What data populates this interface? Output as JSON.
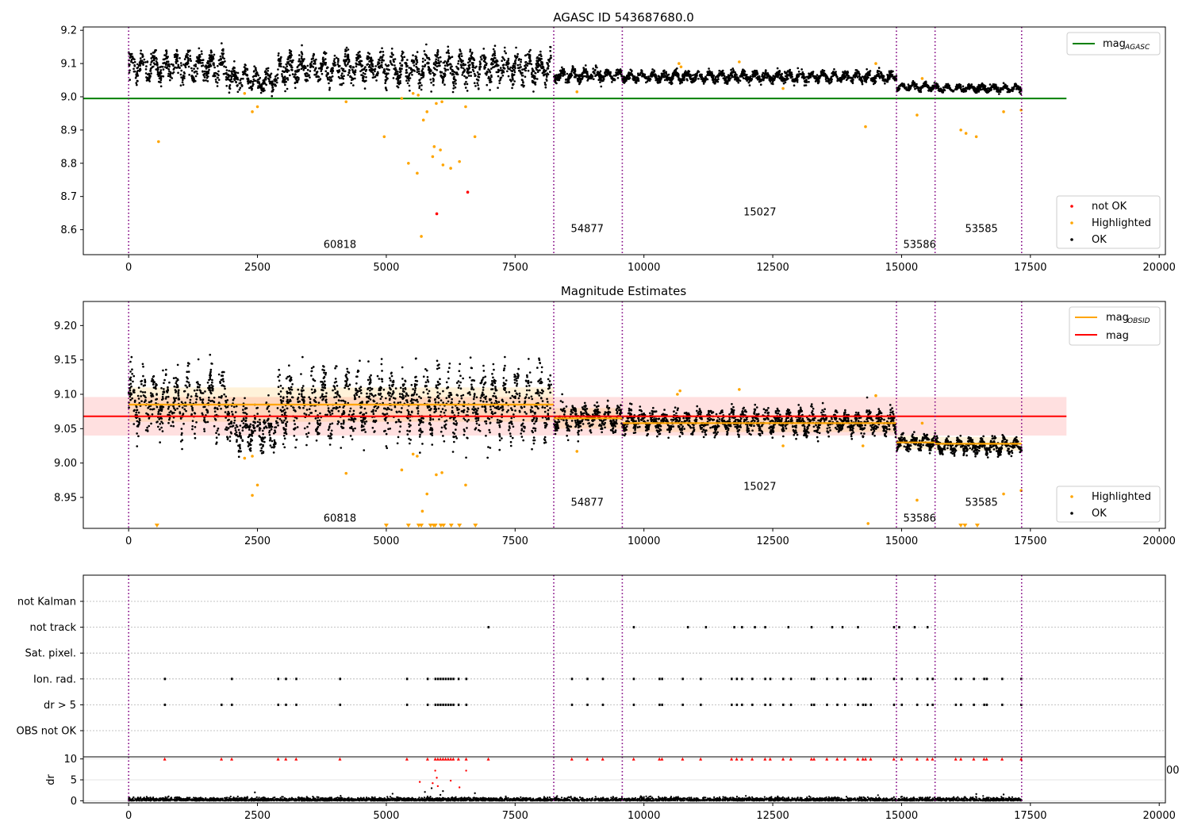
{
  "chart_data": [
    {
      "type": "scatter",
      "title": "AGASC ID 543687680.0",
      "xlim": [
        -880,
        20120
      ],
      "ylim": [
        8.525,
        9.21
      ],
      "xticks": [
        0,
        2500,
        5000,
        7500,
        10000,
        12500,
        15000,
        17500,
        20000
      ],
      "xtick_labels": [
        "0",
        "2500",
        "5000",
        "7500",
        "10000",
        "12500",
        "15000",
        "17500",
        "20000"
      ],
      "yticks": [
        8.6,
        8.7,
        8.8,
        8.9,
        9.0,
        9.1,
        9.2
      ],
      "ytick_labels": [
        "8.6",
        "8.7",
        "8.8",
        "8.9",
        "9.0",
        "9.1",
        "9.2"
      ],
      "obs_boundaries": [
        0,
        8250,
        9580,
        14900,
        15650,
        17330
      ],
      "obs_labels": [
        {
          "x": 4100,
          "y": 8.545,
          "text": "60818"
        },
        {
          "x": 8900,
          "y": 8.593,
          "text": "54877"
        },
        {
          "x": 12250,
          "y": 8.643,
          "text": "15027"
        },
        {
          "x": 15350,
          "y": 8.545,
          "text": "53586"
        },
        {
          "x": 16550,
          "y": 8.593,
          "text": "53585"
        }
      ],
      "reference_line": {
        "name": "mag_AGASC",
        "y": 8.995,
        "x": [
          -880,
          18200
        ],
        "color": "#008000"
      },
      "series": [
        {
          "name": "not OK",
          "color": "#ff0000",
          "points": [
            [
              6580,
              8.713
            ],
            [
              5980,
              8.648
            ]
          ]
        },
        {
          "name": "Highlighted",
          "color": "#ffa500",
          "points": [
            [
              580,
              8.865
            ],
            [
              2250,
              9.01
            ],
            [
              2400,
              8.955
            ],
            [
              2500,
              8.97
            ],
            [
              4220,
              8.985
            ],
            [
              4960,
              8.88
            ],
            [
              5300,
              8.995
            ],
            [
              5430,
              8.8
            ],
            [
              5520,
              9.01
            ],
            [
              5600,
              8.77
            ],
            [
              5620,
              9.005
            ],
            [
              5680,
              8.58
            ],
            [
              5720,
              8.93
            ],
            [
              5790,
              8.955
            ],
            [
              5900,
              8.82
            ],
            [
              5930,
              8.85
            ],
            [
              5970,
              8.98
            ],
            [
              6050,
              8.84
            ],
            [
              6080,
              8.985
            ],
            [
              6100,
              8.795
            ],
            [
              6250,
              8.785
            ],
            [
              6420,
              8.805
            ],
            [
              6540,
              8.97
            ],
            [
              6720,
              8.88
            ],
            [
              8700,
              9.015
            ],
            [
              10680,
              9.1
            ],
            [
              10720,
              9.09
            ],
            [
              11850,
              9.105
            ],
            [
              12700,
              9.025
            ],
            [
              14300,
              8.91
            ],
            [
              14500,
              9.1
            ],
            [
              15300,
              8.945
            ],
            [
              15400,
              9.055
            ],
            [
              16150,
              8.9
            ],
            [
              16250,
              8.89
            ],
            [
              16450,
              8.88
            ],
            [
              16980,
              8.955
            ],
            [
              17320,
              8.96
            ]
          ]
        },
        {
          "name": "OK",
          "color": "#000000",
          "segments": [
            {
              "x": [
                0,
                1950
              ],
              "base": 9.09,
              "amp": 0.045
            },
            {
              "x": 1950,
              "x_end": 2900,
              "base": 9.05,
              "amp": 0.035
            },
            {
              "x": [
                2900,
                8200
              ],
              "base": 9.085,
              "amp": 0.05
            },
            {
              "x": [
                8250,
                9580
              ],
              "base": 9.065,
              "amp": 0.02
            },
            {
              "x": [
                9580,
                14900
              ],
              "base": 9.06,
              "amp": 0.018
            },
            {
              "x": [
                14900,
                15650
              ],
              "base": 9.03,
              "amp": 0.012
            },
            {
              "x": [
                15650,
                17330
              ],
              "base": 9.025,
              "amp": 0.012
            }
          ]
        }
      ],
      "legends": [
        {
          "entries": [
            {
              "label": "mag",
              "sub": "AGASC",
              "color": "#008000",
              "kind": "line"
            }
          ],
          "position": "upper right"
        },
        {
          "entries": [
            {
              "label": "not OK",
              "color": "#ff0000",
              "kind": "marker"
            },
            {
              "label": "Highlighted",
              "color": "#ffa500",
              "kind": "marker"
            },
            {
              "label": "OK",
              "color": "#000000",
              "kind": "marker"
            }
          ],
          "position": "lower right"
        }
      ]
    },
    {
      "type": "scatter",
      "title": "Magnitude Estimates",
      "xlim": [
        -880,
        20120
      ],
      "ylim": [
        8.905,
        9.235
      ],
      "xticks": [
        0,
        2500,
        5000,
        7500,
        10000,
        12500,
        15000,
        17500,
        20000
      ],
      "xtick_labels": [
        "0",
        "2500",
        "5000",
        "7500",
        "10000",
        "12500",
        "15000",
        "17500",
        "20000"
      ],
      "yticks": [
        8.95,
        9.0,
        9.05,
        9.1,
        9.15,
        9.2
      ],
      "ytick_labels": [
        "8.95",
        "9.00",
        "9.05",
        "9.10",
        "9.15",
        "9.20"
      ],
      "obs_boundaries": [
        0,
        8250,
        9580,
        14900,
        15650,
        17330
      ],
      "obs_labels": [
        {
          "x": 4100,
          "y": 8.915,
          "text": "60818"
        },
        {
          "x": 8900,
          "y": 8.938,
          "text": "54877"
        },
        {
          "x": 12250,
          "y": 8.961,
          "text": "15027"
        },
        {
          "x": 15350,
          "y": 8.915,
          "text": "53586"
        },
        {
          "x": 16550,
          "y": 8.938,
          "text": "53585"
        }
      ],
      "mag": {
        "y": 9.068,
        "band": [
          9.04,
          9.096
        ],
        "x": [
          -880,
          18200
        ],
        "color": "#ff0000"
      },
      "mag_obsid": [
        {
          "x": [
            0,
            8250
          ],
          "y": 9.085,
          "band": [
            9.06,
            9.11
          ]
        },
        {
          "x": [
            8250,
            9580
          ],
          "y": 9.065,
          "band": [
            9.05,
            9.08
          ]
        },
        {
          "x": [
            9580,
            14900
          ],
          "y": 9.058,
          "band": [
            9.045,
            9.07
          ]
        },
        {
          "x": [
            14900,
            15650
          ],
          "y": 9.03,
          "band": [
            9.02,
            9.04
          ]
        },
        {
          "x": [
            15650,
            17330
          ],
          "y": 9.028,
          "band": [
            9.018,
            9.038
          ]
        }
      ],
      "highlighted_clipped_x": [
        550,
        5000,
        5430,
        5630,
        5680,
        5860,
        5920,
        5950,
        6060,
        6110,
        6260,
        6420,
        6730,
        16150,
        16230,
        16470
      ],
      "highlighted_points": [
        [
          2250,
          9.007
        ],
        [
          2400,
          9.01
        ],
        [
          2500,
          8.968
        ],
        [
          2400,
          8.953
        ],
        [
          4220,
          8.985
        ],
        [
          5300,
          8.99
        ],
        [
          5520,
          9.013
        ],
        [
          5600,
          9.01
        ],
        [
          5700,
          8.93
        ],
        [
          5790,
          8.955
        ],
        [
          5970,
          8.983
        ],
        [
          6080,
          8.986
        ],
        [
          6540,
          8.968
        ],
        [
          8700,
          9.017
        ],
        [
          10700,
          9.105
        ],
        [
          10650,
          9.1
        ],
        [
          11850,
          9.107
        ],
        [
          12700,
          9.025
        ],
        [
          14250,
          9.025
        ],
        [
          14350,
          8.912
        ],
        [
          14500,
          9.098
        ],
        [
          15300,
          8.946
        ],
        [
          15400,
          9.058
        ],
        [
          16980,
          8.955
        ],
        [
          17320,
          8.96
        ]
      ],
      "legends": [
        {
          "entries": [
            {
              "label": "mag",
              "sub": "OBSID",
              "color": "#ffa500",
              "kind": "line"
            },
            {
              "label": "mag",
              "color": "#ff0000",
              "kind": "line"
            }
          ],
          "position": "upper right"
        },
        {
          "entries": [
            {
              "label": "Highlighted",
              "color": "#ffa500",
              "kind": "marker"
            },
            {
              "label": "OK",
              "color": "#000000",
              "kind": "marker"
            }
          ],
          "position": "lower right"
        }
      ]
    },
    {
      "type": "scatter",
      "title": "",
      "categories": [
        "not Kalman",
        "not track",
        "Sat. pixel.",
        "Ion. rad.",
        "dr > 5",
        "OBS not OK"
      ],
      "xlim": [
        -880,
        20120
      ],
      "obs_boundaries": [
        0,
        8250,
        9580,
        14900,
        15650,
        17330
      ],
      "flags": {
        "not track": [
          6980,
          9800,
          10850,
          11200,
          11750,
          11900,
          12150,
          12350,
          12800,
          13250,
          13650,
          13850,
          14150,
          14850,
          14950,
          15250,
          15500
        ],
        "Ion. rad.": [
          700,
          2000,
          2900,
          3050,
          3250,
          4100,
          5400,
          5800,
          5950,
          6000,
          6050,
          6100,
          6150,
          6200,
          6250,
          6300,
          6400,
          6550,
          8600,
          8900,
          9200,
          9800,
          10300,
          10350,
          10750,
          11100,
          11700,
          11800,
          11900,
          12100,
          12350,
          12450,
          12700,
          12850,
          13250,
          13300,
          13550,
          13750,
          13900,
          14150,
          14250,
          14300,
          14400,
          14850,
          15000,
          15300,
          15500,
          15600,
          16050,
          16150,
          16400,
          16600,
          16650,
          16950,
          17320
        ],
        "dr > 5": [
          700,
          1800,
          2000,
          2900,
          3050,
          3250,
          4100,
          5400,
          5800,
          5950,
          6000,
          6050,
          6100,
          6150,
          6200,
          6250,
          6300,
          6400,
          6550,
          8600,
          8900,
          9200,
          9800,
          10300,
          10350,
          10750,
          11100,
          11700,
          11800,
          11900,
          12100,
          12350,
          12450,
          12700,
          12850,
          13250,
          13300,
          13550,
          13750,
          13900,
          14150,
          14250,
          14300,
          14400,
          14850,
          15000,
          15300,
          15500,
          15600,
          16050,
          16150,
          16400,
          16600,
          16650,
          16950,
          17320
        ]
      }
    },
    {
      "type": "scatter",
      "title": "",
      "ylabel": "dr",
      "xlim": [
        -880,
        20120
      ],
      "ylim": [
        -0.5,
        10.5
      ],
      "xticks": [
        0,
        2500,
        5000,
        7500,
        10000,
        12500,
        15000,
        17500,
        20000
      ],
      "xtick_labels": [
        "0",
        "2500",
        "5000",
        "7500",
        "10000",
        "12500",
        "15000",
        "17500",
        "20000"
      ],
      "yticks": [
        0,
        5,
        10
      ],
      "ytick_labels": [
        "0",
        "5",
        "10"
      ],
      "obs_boundaries": [
        0,
        8250,
        9580,
        14900,
        15650,
        17330
      ],
      "clipped_red_x": [
        700,
        1800,
        2000,
        2900,
        3050,
        3250,
        4100,
        5400,
        5800,
        5950,
        6000,
        6050,
        6100,
        6150,
        6200,
        6250,
        6300,
        6400,
        6550,
        6980,
        8600,
        8900,
        9200,
        9800,
        10300,
        10350,
        10750,
        11100,
        11700,
        11800,
        11900,
        12100,
        12350,
        12450,
        12700,
        12850,
        13250,
        13300,
        13550,
        13750,
        13900,
        14150,
        14250,
        14300,
        14400,
        14850,
        15000,
        15300,
        15500,
        15600,
        16050,
        16150,
        16400,
        16600,
        16650,
        16950,
        17320
      ],
      "outlier_points": [
        [
          5950,
          7.2
        ],
        [
          5980,
          5.5
        ],
        [
          5900,
          4.2
        ],
        [
          6000,
          3.5
        ],
        [
          5880,
          3.0
        ],
        [
          6100,
          2.3
        ],
        [
          6250,
          4.8
        ],
        [
          6420,
          3.2
        ],
        [
          6550,
          7.2
        ],
        [
          5650,
          4.5
        ],
        [
          5750,
          2.1
        ],
        [
          6720,
          1.8
        ],
        [
          2450,
          2.0
        ],
        [
          5800,
          1.0
        ],
        [
          6050,
          1.4
        ],
        [
          16450,
          1.6
        ],
        [
          16980,
          1.5
        ]
      ],
      "overlap_text": "00"
    }
  ]
}
